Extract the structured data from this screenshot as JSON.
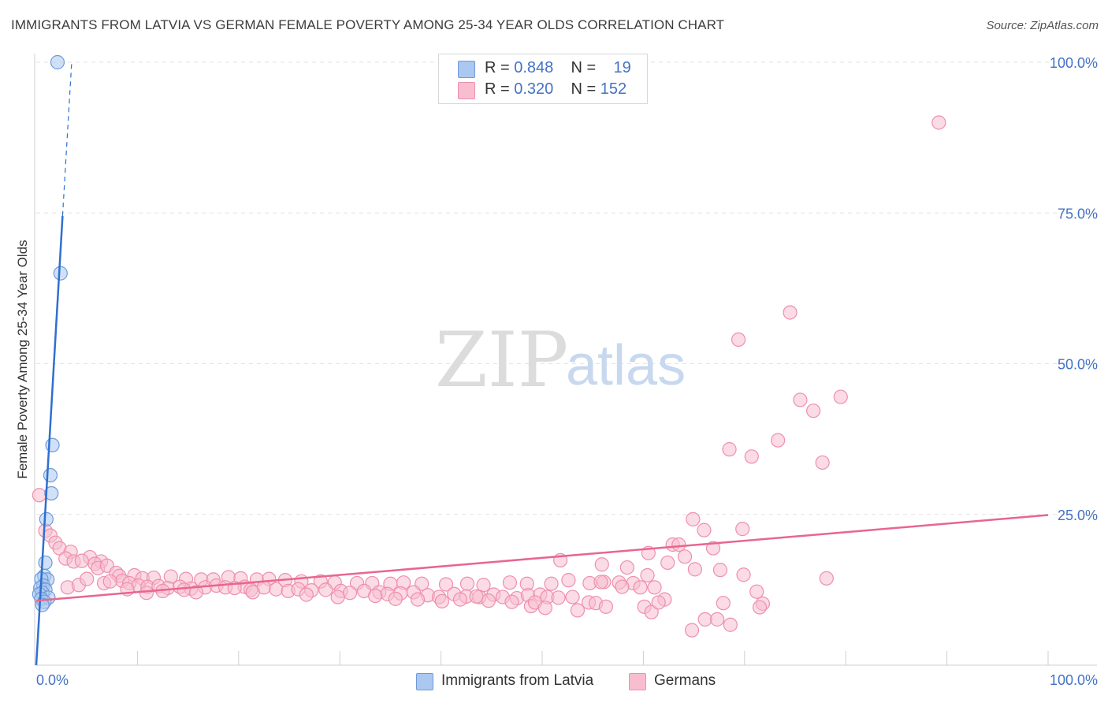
{
  "header": {
    "title": "IMMIGRANTS FROM LATVIA VS GERMAN FEMALE POVERTY AMONG 25-34 YEAR OLDS CORRELATION CHART",
    "source": "Source: ZipAtlas.com"
  },
  "watermark": {
    "zip": "ZIP",
    "atlas": "atlas"
  },
  "legend": {
    "rows": [
      {
        "r_label": "R =",
        "r_value": "0.848",
        "n_label": "N =",
        "n_value": "19",
        "color": "#aac8f0",
        "border": "#6f9ad8"
      },
      {
        "r_label": "R =",
        "r_value": "0.320",
        "n_label": "N =",
        "n_value": "152",
        "color": "#f8bed0",
        "border": "#ee8fae"
      }
    ]
  },
  "bottom_legend": [
    {
      "label": "Immigrants from Latvia",
      "color": "#aac8f0",
      "border": "#6f9ad8"
    },
    {
      "label": "Germans",
      "color": "#f8bed0",
      "border": "#ee8fae"
    }
  ],
  "chart_data": {
    "type": "scatter",
    "title": "IMMIGRANTS FROM LATVIA VS GERMAN FEMALE POVERTY AMONG 25-34 YEAR OLDS CORRELATION CHART",
    "xlabel": "",
    "ylabel": "Female Poverty Among 25-34 Year Olds",
    "xlim": [
      0,
      100
    ],
    "ylim": [
      0,
      100
    ],
    "x_tick_labels": [
      "0.0%",
      "100.0%"
    ],
    "y_ticks": [
      25,
      50,
      75,
      100
    ],
    "y_tick_labels": [
      "25.0%",
      "50.0%",
      "75.0%",
      "100.0%"
    ],
    "grid": true,
    "series": [
      {
        "name": "Immigrants from Latvia",
        "color": "#aac8f0",
        "stroke": "#6f9ad8",
        "line_color": "#2f6fd0",
        "R": 0.848,
        "N": 19,
        "trend": {
          "x0": 0.0,
          "y0": 0.0,
          "x1": 2.6,
          "y1": 74.5,
          "dash_to_x": 3.5,
          "dash_to_y": 100
        },
        "points": [
          [
            2.1,
            100
          ],
          [
            2.4,
            65
          ],
          [
            1.6,
            36.5
          ],
          [
            1.4,
            31.5
          ],
          [
            1.5,
            28.5
          ],
          [
            1.0,
            24.2
          ],
          [
            0.9,
            17
          ],
          [
            0.8,
            14.8
          ],
          [
            1.1,
            14.2
          ],
          [
            0.5,
            14.3
          ],
          [
            0.7,
            13.2
          ],
          [
            0.4,
            12.8
          ],
          [
            0.9,
            12.5
          ],
          [
            0.6,
            12.0
          ],
          [
            0.3,
            11.8
          ],
          [
            1.2,
            11.2
          ],
          [
            0.5,
            11.0
          ],
          [
            0.8,
            10.5
          ],
          [
            0.6,
            10.0
          ]
        ]
      },
      {
        "name": "Germans",
        "color": "#f8bed0",
        "stroke": "#ee8fae",
        "line_color": "#e8668f",
        "R": 0.32,
        "N": 152,
        "trend": {
          "x0": 0,
          "y0": 10.7,
          "x1": 100,
          "y1": 24.9
        },
        "points": [
          [
            89.2,
            90
          ],
          [
            74.5,
            58.5
          ],
          [
            69.4,
            54
          ],
          [
            79.5,
            44.5
          ],
          [
            75.5,
            44
          ],
          [
            76.8,
            42.2
          ],
          [
            73.3,
            37.3
          ],
          [
            68.5,
            35.8
          ],
          [
            70.7,
            34.6
          ],
          [
            77.7,
            33.6
          ],
          [
            0.3,
            28.2
          ],
          [
            64.9,
            24.2
          ],
          [
            66.0,
            22.4
          ],
          [
            69.8,
            22.6
          ],
          [
            0.9,
            22.3
          ],
          [
            1.4,
            21.5
          ],
          [
            1.9,
            20.3
          ],
          [
            2.3,
            19.4
          ],
          [
            62.9,
            20.0
          ],
          [
            63.5,
            20.0
          ],
          [
            66.9,
            19.4
          ],
          [
            3.4,
            18.8
          ],
          [
            2.9,
            17.7
          ],
          [
            5.3,
            17.9
          ],
          [
            3.7,
            17.2
          ],
          [
            4.5,
            17.3
          ],
          [
            6.4,
            17.2
          ],
          [
            60.5,
            18.6
          ],
          [
            51.8,
            17.4
          ],
          [
            64.1,
            18.0
          ],
          [
            62.4,
            17.0
          ],
          [
            55.9,
            16.7
          ],
          [
            58.4,
            16.2
          ],
          [
            67.6,
            15.8
          ],
          [
            5.8,
            16.8
          ],
          [
            6.1,
            16.1
          ],
          [
            7.0,
            16.5
          ],
          [
            7.9,
            15.3
          ],
          [
            8.2,
            14.8
          ],
          [
            9.7,
            14.9
          ],
          [
            10.5,
            14.4
          ],
          [
            11.6,
            14.5
          ],
          [
            13.3,
            14.7
          ],
          [
            14.8,
            14.3
          ],
          [
            16.3,
            14.2
          ],
          [
            17.5,
            14.2
          ],
          [
            19.0,
            14.6
          ],
          [
            20.2,
            14.4
          ],
          [
            21.8,
            14.2
          ],
          [
            23.0,
            14.3
          ],
          [
            24.6,
            14.1
          ],
          [
            26.2,
            13.9
          ],
          [
            28.1,
            13.9
          ],
          [
            29.5,
            13.7
          ],
          [
            31.7,
            13.6
          ],
          [
            33.2,
            13.6
          ],
          [
            35.0,
            13.5
          ],
          [
            36.3,
            13.7
          ],
          [
            38.1,
            13.5
          ],
          [
            40.5,
            13.4
          ],
          [
            42.6,
            13.5
          ],
          [
            44.2,
            13.3
          ],
          [
            46.8,
            13.7
          ],
          [
            48.5,
            13.5
          ],
          [
            50.9,
            13.5
          ],
          [
            52.6,
            14.1
          ],
          [
            56.1,
            13.8
          ],
          [
            57.6,
            13.7
          ],
          [
            59.0,
            13.6
          ],
          [
            60.4,
            14.9
          ],
          [
            65.1,
            15.9
          ],
          [
            69.9,
            15.0
          ],
          [
            78.1,
            14.4
          ],
          [
            8.5,
            14.0
          ],
          [
            9.2,
            13.6
          ],
          [
            10.1,
            13.2
          ],
          [
            11.0,
            13.0
          ],
          [
            12.1,
            13.1
          ],
          [
            13.0,
            12.8
          ],
          [
            14.2,
            13.0
          ],
          [
            15.3,
            12.7
          ],
          [
            16.7,
            12.9
          ],
          [
            17.8,
            13.2
          ],
          [
            18.7,
            12.9
          ],
          [
            20.6,
            13.0
          ],
          [
            21.2,
            12.5
          ],
          [
            22.5,
            12.9
          ],
          [
            23.7,
            12.6
          ],
          [
            24.9,
            12.3
          ],
          [
            25.9,
            12.6
          ],
          [
            27.2,
            12.4
          ],
          [
            28.6,
            12.5
          ],
          [
            30.1,
            12.3
          ],
          [
            31.0,
            12.0
          ],
          [
            32.4,
            12.3
          ],
          [
            33.9,
            12.1
          ],
          [
            34.7,
            11.8
          ],
          [
            36.0,
            11.9
          ],
          [
            37.3,
            12.1
          ],
          [
            38.7,
            11.6
          ],
          [
            39.8,
            11.3
          ],
          [
            41.3,
            11.8
          ],
          [
            42.5,
            11.4
          ],
          [
            43.8,
            11.3
          ],
          [
            45.2,
            11.7
          ],
          [
            46.1,
            11.3
          ],
          [
            47.5,
            11.1
          ],
          [
            48.6,
            11.6
          ],
          [
            49.8,
            11.7
          ],
          [
            50.5,
            11.3
          ],
          [
            51.6,
            11.2
          ],
          [
            53.0,
            11.3
          ],
          [
            54.7,
            13.6
          ],
          [
            55.8,
            13.8
          ],
          [
            57.9,
            13.0
          ],
          [
            59.7,
            12.9
          ],
          [
            61.1,
            12.9
          ],
          [
            62.1,
            10.9
          ],
          [
            71.2,
            12.2
          ],
          [
            71.8,
            10.2
          ],
          [
            3.1,
            12.9
          ],
          [
            4.2,
            13.3
          ],
          [
            5.0,
            14.3
          ],
          [
            6.7,
            13.6
          ],
          [
            7.3,
            13.9
          ],
          [
            9.0,
            12.6
          ],
          [
            10.9,
            12.0
          ],
          [
            12.5,
            12.3
          ],
          [
            14.6,
            12.5
          ],
          [
            15.8,
            12.1
          ],
          [
            19.6,
            12.8
          ],
          [
            21.4,
            12.1
          ],
          [
            26.7,
            11.7
          ],
          [
            29.8,
            11.3
          ],
          [
            33.5,
            11.5
          ],
          [
            35.5,
            11.0
          ],
          [
            37.7,
            10.9
          ],
          [
            40.1,
            10.6
          ],
          [
            41.9,
            10.9
          ],
          [
            43.5,
            11.4
          ],
          [
            44.7,
            10.7
          ],
          [
            47.0,
            10.5
          ],
          [
            48.9,
            9.8
          ],
          [
            49.3,
            10.4
          ],
          [
            50.3,
            9.5
          ],
          [
            53.5,
            9.1
          ],
          [
            54.6,
            10.4
          ],
          [
            55.3,
            10.3
          ],
          [
            56.3,
            9.7
          ],
          [
            60.1,
            9.7
          ],
          [
            60.8,
            8.8
          ],
          [
            61.5,
            10.4
          ],
          [
            67.9,
            10.3
          ],
          [
            71.5,
            9.6
          ],
          [
            66.1,
            7.6
          ],
          [
            67.3,
            7.6
          ],
          [
            64.8,
            5.8
          ],
          [
            68.6,
            6.7
          ]
        ]
      }
    ]
  }
}
